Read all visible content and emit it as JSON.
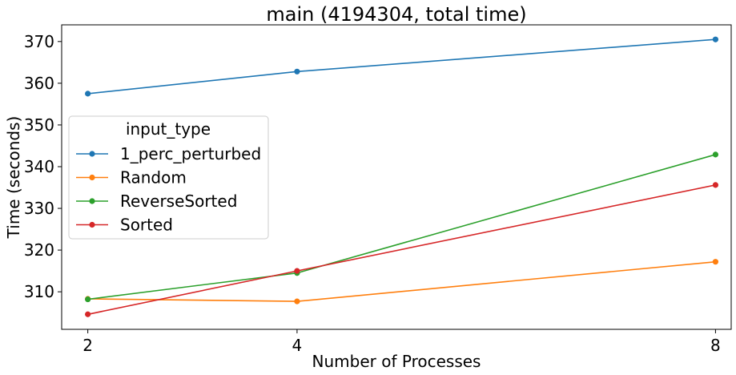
{
  "chart_data": {
    "type": "line",
    "title": "main (4194304, total time)",
    "xlabel": "Number of Processes",
    "ylabel": "Time (seconds)",
    "x": [
      2,
      4,
      8
    ],
    "xticks": [
      "2",
      "4",
      "8"
    ],
    "xlim": [
      1.75,
      8.15
    ],
    "ylim": [
      301.0,
      374.0
    ],
    "yticks": [
      310,
      320,
      330,
      340,
      350,
      360,
      370
    ],
    "grid": false,
    "legend": {
      "title": "input_type",
      "placement": "center-left"
    },
    "series": [
      {
        "name": "1_perc_perturbed",
        "color": "#1f77b4",
        "values": [
          357.5,
          362.8,
          370.5
        ]
      },
      {
        "name": "Random",
        "color": "#ff7f0e",
        "values": [
          308.3,
          307.7,
          317.2
        ]
      },
      {
        "name": "ReverseSorted",
        "color": "#2ca02c",
        "values": [
          308.2,
          314.5,
          342.9
        ]
      },
      {
        "name": "Sorted",
        "color": "#d62728",
        "values": [
          304.6,
          315.0,
          335.6
        ]
      }
    ]
  }
}
